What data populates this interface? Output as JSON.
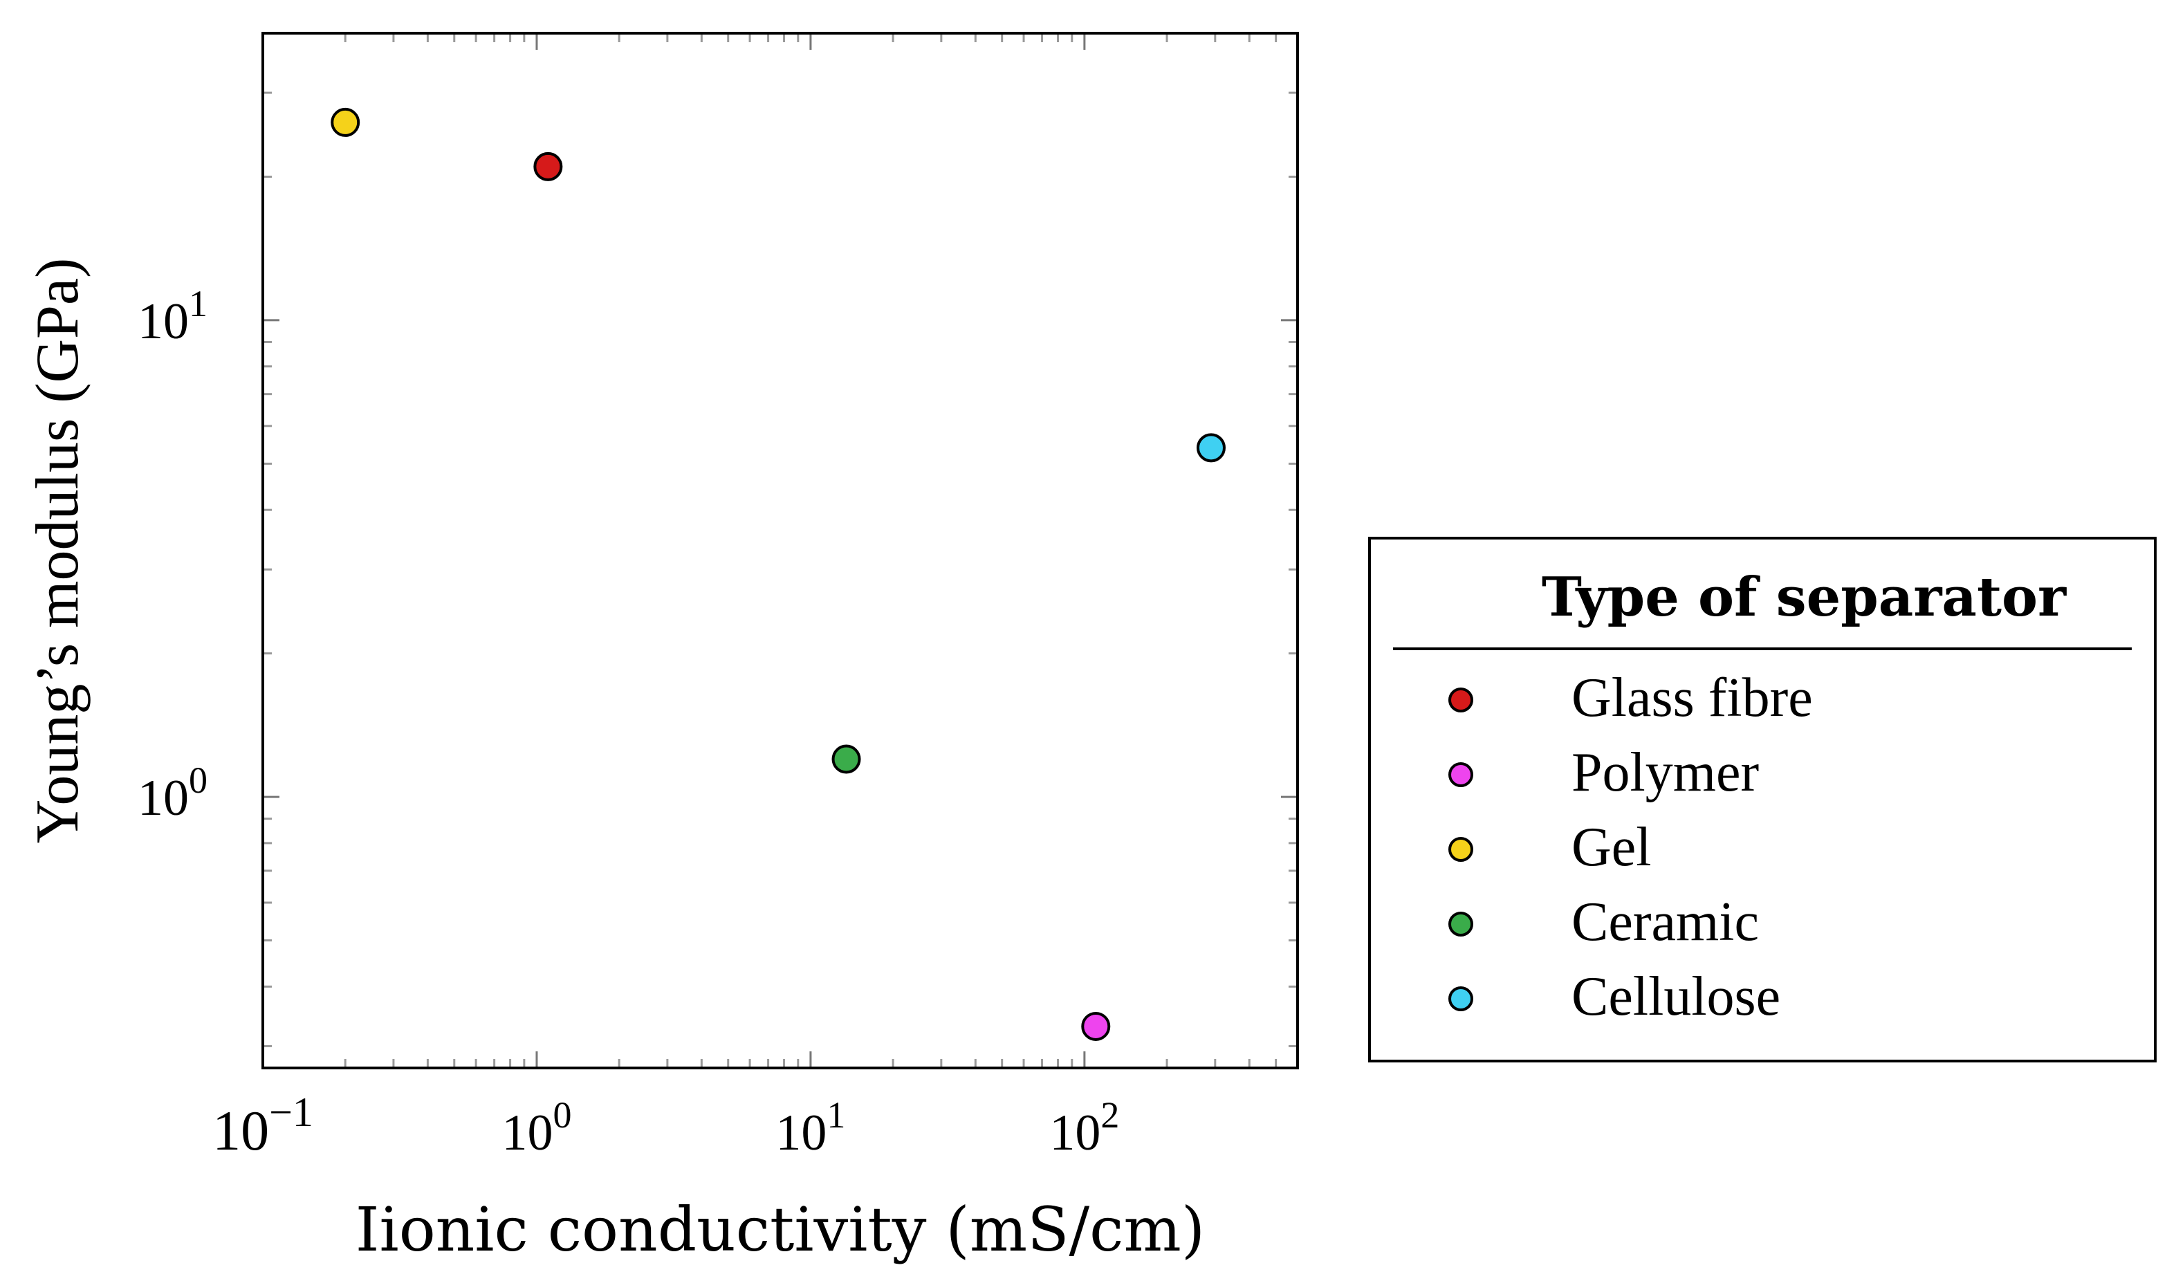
{
  "chart_data": {
    "type": "scatter",
    "title": "",
    "xlabel": "Iionic conductivity (mS/cm)",
    "ylabel": "Young’s modulus (GPa)",
    "xscale": "log",
    "yscale": "log",
    "xlim": [
      0.1,
      600
    ],
    "ylim": [
      0.27,
      40
    ],
    "x_ticks": [
      {
        "value": 0.1,
        "base": "10",
        "exp": "−1"
      },
      {
        "value": 1,
        "base": "10",
        "exp": "0"
      },
      {
        "value": 10,
        "base": "10",
        "exp": "1"
      },
      {
        "value": 100,
        "base": "10",
        "exp": "2"
      }
    ],
    "y_ticks": [
      {
        "value": 1,
        "base": "10",
        "exp": "0"
      },
      {
        "value": 10,
        "base": "10",
        "exp": "1"
      }
    ],
    "legend": {
      "title": "Type of separator",
      "position": "right"
    },
    "series": [
      {
        "name": "Glass fibre",
        "color": "#d61a1a",
        "x": [
          1.1
        ],
        "y": [
          21
        ]
      },
      {
        "name": "Polymer",
        "color": "#ee44ee",
        "x": [
          110
        ],
        "y": [
          0.33
        ]
      },
      {
        "name": "Gel",
        "color": "#f5d21a",
        "x": [
          0.2
        ],
        "y": [
          26
        ]
      },
      {
        "name": "Ceramic",
        "color": "#3aac4a",
        "x": [
          13.5
        ],
        "y": [
          1.2
        ]
      },
      {
        "name": "Cellulose",
        "color": "#3fd0f2",
        "x": [
          290
        ],
        "y": [
          5.4
        ]
      }
    ]
  }
}
